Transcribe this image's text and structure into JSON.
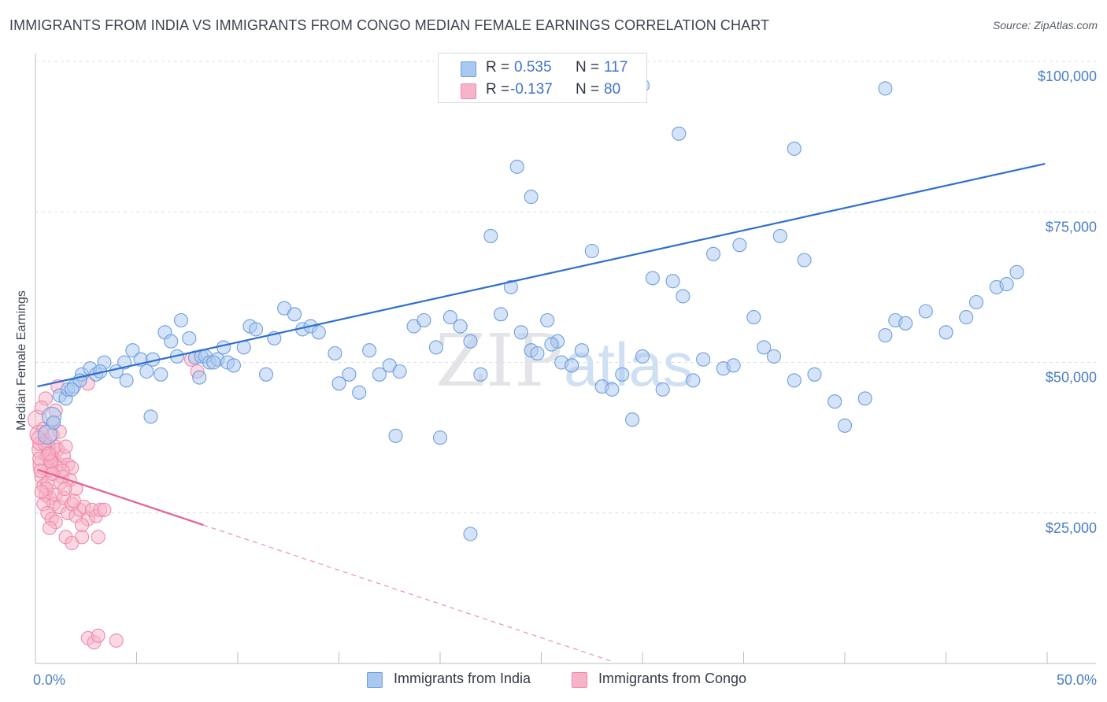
{
  "header": {
    "title": "IMMIGRANTS FROM INDIA VS IMMIGRANTS FROM CONGO MEDIAN FEMALE EARNINGS CORRELATION CHART",
    "source": "Source: ZipAtlas.com"
  },
  "watermark": {
    "zip": "ZIP",
    "atlas": "atlas"
  },
  "stats": {
    "india": {
      "r_label": "R =",
      "r_value": "0.535",
      "n_label": "N =",
      "n_value": "117"
    },
    "congo": {
      "r_label": "R =",
      "r_value": "-0.137",
      "n_label": "N =",
      "n_value": "80"
    }
  },
  "legend": {
    "india": "Immigrants from India",
    "congo": "Immigrants from Congo"
  },
  "colors": {
    "india_fill": "#a9c8f0",
    "india_stroke": "#6d9fe0",
    "india_line": "#2f6fcf",
    "congo_fill": "#f7b3c8",
    "congo_stroke": "#ee8aaa",
    "congo_line": "#e8608e",
    "grid": "#dcdfe4",
    "tick_text": "#4a7ec6"
  },
  "chart_data": {
    "type": "scatter",
    "title": "IMMIGRANTS FROM INDIA VS IMMIGRANTS FROM CONGO MEDIAN FEMALE EARNINGS CORRELATION CHART",
    "xlabel": "",
    "ylabel": "Median Female Earnings",
    "xlim": [
      0,
      50
    ],
    "ylim": [
      0,
      105000
    ],
    "x_ticks": [
      0,
      5,
      10,
      15,
      20,
      25,
      30,
      35,
      40,
      45,
      50
    ],
    "x_tick_labels": [
      {
        "value": 0,
        "label": "0.0%"
      },
      {
        "value": 50,
        "label": "50.0%"
      }
    ],
    "y_ticks": [
      {
        "value": 25000,
        "label": "$25,000"
      },
      {
        "value": 50000,
        "label": "$50,000"
      },
      {
        "value": 75000,
        "label": "$75,000"
      },
      {
        "value": 100000,
        "label": "$100,000"
      }
    ],
    "grid": true,
    "series": [
      {
        "name": "Immigrants from India",
        "key": "india",
        "R": 0.535,
        "N": 117,
        "trend": {
          "x": [
            0.1,
            49.9
          ],
          "y": [
            46000,
            83000
          ],
          "dashed_x": []
        },
        "points": [
          [
            0.8,
            41000,
            1
          ],
          [
            0.6,
            38000,
            1
          ],
          [
            0.9,
            40000,
            0
          ],
          [
            1.2,
            44500,
            0
          ],
          [
            1.5,
            44000,
            0
          ],
          [
            1.6,
            45500,
            0
          ],
          [
            1.9,
            46000,
            0
          ],
          [
            2.3,
            48000,
            0
          ],
          [
            2.7,
            49000,
            0
          ],
          [
            3.0,
            48000,
            0
          ],
          [
            3.4,
            50000,
            0
          ],
          [
            3.2,
            48500,
            0
          ],
          [
            2.2,
            47000,
            0
          ],
          [
            1.8,
            45500,
            0
          ],
          [
            4.4,
            50000,
            0
          ],
          [
            4.8,
            52000,
            0
          ],
          [
            5.2,
            50500,
            0
          ],
          [
            5.8,
            50500,
            0
          ],
          [
            6.4,
            55000,
            0
          ],
          [
            6.7,
            53500,
            0
          ],
          [
            7.0,
            51000,
            0
          ],
          [
            7.2,
            57000,
            0
          ],
          [
            7.6,
            54000,
            0
          ],
          [
            7.9,
            50800,
            0
          ],
          [
            8.2,
            51000,
            0
          ],
          [
            8.4,
            51000,
            0
          ],
          [
            8.6,
            50000,
            0
          ],
          [
            9.0,
            50500,
            0
          ],
          [
            9.3,
            52500,
            0
          ],
          [
            9.5,
            50000,
            0
          ],
          [
            9.8,
            49500,
            0
          ],
          [
            8.8,
            50000,
            0
          ],
          [
            8.1,
            47500,
            0
          ],
          [
            4.0,
            48500,
            0
          ],
          [
            4.5,
            47000,
            0
          ],
          [
            5.5,
            48500,
            0
          ],
          [
            6.2,
            48000,
            0
          ],
          [
            5.7,
            41000,
            0
          ],
          [
            10.3,
            52500,
            0
          ],
          [
            10.6,
            56000,
            0
          ],
          [
            10.9,
            55500,
            0
          ],
          [
            11.4,
            48000,
            0
          ],
          [
            11.8,
            54000,
            0
          ],
          [
            12.3,
            59000,
            0
          ],
          [
            12.8,
            58000,
            0
          ],
          [
            13.2,
            55500,
            0
          ],
          [
            13.6,
            56000,
            0
          ],
          [
            14.0,
            55000,
            0
          ],
          [
            14.8,
            51500,
            0
          ],
          [
            15.0,
            46500,
            0
          ],
          [
            15.5,
            48000,
            0
          ],
          [
            16.0,
            45000,
            0
          ],
          [
            16.5,
            52000,
            0
          ],
          [
            17.0,
            48000,
            0
          ],
          [
            17.5,
            49500,
            0
          ],
          [
            18.0,
            48500,
            0
          ],
          [
            18.7,
            56000,
            0
          ],
          [
            19.2,
            57000,
            0
          ],
          [
            19.8,
            52500,
            0
          ],
          [
            20.5,
            57500,
            0
          ],
          [
            21.0,
            56000,
            0
          ],
          [
            21.5,
            53500,
            0
          ],
          [
            22.0,
            48000,
            0
          ],
          [
            23.0,
            58000,
            0
          ],
          [
            23.5,
            62500,
            0
          ],
          [
            24.0,
            55000,
            0
          ],
          [
            24.5,
            52000,
            0
          ],
          [
            24.8,
            51500,
            0
          ],
          [
            25.3,
            57000,
            0
          ],
          [
            25.8,
            53500,
            0
          ],
          [
            26.0,
            50000,
            0
          ],
          [
            27.0,
            52000,
            0
          ],
          [
            28.0,
            46000,
            0
          ],
          [
            29.0,
            48000,
            0
          ],
          [
            30.0,
            51000,
            0
          ],
          [
            31.0,
            45500,
            0
          ],
          [
            32.5,
            47000,
            0
          ],
          [
            33.0,
            50500,
            0
          ],
          [
            34.0,
            49000,
            0
          ],
          [
            34.5,
            49500,
            0
          ],
          [
            35.5,
            57500,
            0
          ],
          [
            36.0,
            52500,
            0
          ],
          [
            36.5,
            51000,
            0
          ],
          [
            37.5,
            47000,
            0
          ],
          [
            38.5,
            48000,
            0
          ],
          [
            39.5,
            43500,
            0
          ],
          [
            41.0,
            44000,
            0
          ],
          [
            42.0,
            54500,
            0
          ],
          [
            42.5,
            57000,
            0
          ],
          [
            43.0,
            56500,
            0
          ],
          [
            44.0,
            58500,
            0
          ],
          [
            45.0,
            55000,
            0
          ],
          [
            46.0,
            57500,
            0
          ],
          [
            46.5,
            60000,
            0
          ],
          [
            47.5,
            62500,
            0
          ],
          [
            48.0,
            63000,
            0
          ],
          [
            48.5,
            65000,
            0
          ],
          [
            30.5,
            64000,
            0
          ],
          [
            31.5,
            63500,
            0
          ],
          [
            32.0,
            61000,
            0
          ],
          [
            25.5,
            53000,
            0
          ],
          [
            26.5,
            49500,
            0
          ],
          [
            28.5,
            45500,
            0
          ],
          [
            29.5,
            40500,
            0
          ],
          [
            33.5,
            68000,
            0
          ],
          [
            34.8,
            69500,
            0
          ],
          [
            36.8,
            71000,
            0
          ],
          [
            38.0,
            67000,
            0
          ],
          [
            27.5,
            68500,
            0
          ],
          [
            22.5,
            71000,
            0
          ],
          [
            23.8,
            82500,
            0
          ],
          [
            24.5,
            77500,
            0
          ],
          [
            40.0,
            39500,
            0
          ],
          [
            20.0,
            37500,
            0
          ],
          [
            17.8,
            37800,
            0
          ],
          [
            21.5,
            21500,
            0
          ],
          [
            42.0,
            95500,
            0
          ],
          [
            30.0,
            96000,
            0
          ],
          [
            31.8,
            88000,
            0
          ],
          [
            37.5,
            85500,
            0
          ]
        ]
      },
      {
        "name": "Immigrants from Congo",
        "key": "congo",
        "R": -0.137,
        "N": 80,
        "trend": {
          "x": [
            0.1,
            8.3
          ],
          "y": [
            32200,
            23000
          ],
          "dashed_x": [
            8.3,
            28.5
          ]
        },
        "points": [
          [
            0.1,
            40500,
            1
          ],
          [
            0.2,
            38000,
            1
          ],
          [
            0.3,
            35500,
            1
          ],
          [
            0.35,
            33000,
            1
          ],
          [
            0.2,
            36500,
            0
          ],
          [
            0.4,
            39000,
            0
          ],
          [
            0.5,
            37000,
            0
          ],
          [
            0.55,
            34500,
            0
          ],
          [
            0.6,
            32000,
            0
          ],
          [
            0.65,
            36000,
            0
          ],
          [
            0.7,
            35000,
            0
          ],
          [
            0.8,
            33500,
            0
          ],
          [
            0.85,
            38000,
            0
          ],
          [
            0.9,
            34000,
            0
          ],
          [
            1.0,
            36000,
            0
          ],
          [
            1.05,
            32500,
            0
          ],
          [
            1.1,
            35500,
            0
          ],
          [
            1.2,
            33000,
            0
          ],
          [
            1.3,
            31000,
            0
          ],
          [
            1.4,
            34500,
            0
          ],
          [
            1.5,
            36000,
            0
          ],
          [
            1.6,
            33000,
            0
          ],
          [
            1.7,
            30500,
            0
          ],
          [
            1.8,
            32500,
            0
          ],
          [
            0.3,
            31000,
            0
          ],
          [
            0.4,
            29500,
            0
          ],
          [
            0.5,
            28000,
            0
          ],
          [
            0.6,
            30000,
            0
          ],
          [
            0.7,
            27500,
            0
          ],
          [
            0.9,
            26500,
            0
          ],
          [
            1.0,
            28000,
            0
          ],
          [
            1.2,
            26000,
            0
          ],
          [
            1.4,
            27500,
            0
          ],
          [
            1.6,
            25000,
            0
          ],
          [
            1.8,
            26500,
            0
          ],
          [
            2.0,
            24500,
            0
          ],
          [
            2.2,
            25500,
            0
          ],
          [
            2.4,
            26000,
            0
          ],
          [
            2.6,
            24000,
            0
          ],
          [
            2.8,
            25500,
            0
          ],
          [
            3.0,
            24500,
            0
          ],
          [
            3.2,
            25500,
            0
          ],
          [
            0.4,
            26500,
            0
          ],
          [
            0.6,
            25000,
            0
          ],
          [
            0.8,
            24000,
            0
          ],
          [
            1.0,
            23500,
            0
          ],
          [
            1.5,
            21000,
            0
          ],
          [
            1.8,
            20000,
            0
          ],
          [
            2.3,
            21000,
            0
          ],
          [
            3.1,
            21000,
            0
          ],
          [
            0.5,
            44000,
            0
          ],
          [
            1.1,
            46000,
            0
          ],
          [
            2.6,
            46500,
            0
          ],
          [
            3.4,
            25500,
            0
          ],
          [
            0.3,
            42500,
            0
          ],
          [
            0.9,
            40000,
            0
          ],
          [
            0.2,
            34000,
            0
          ],
          [
            0.25,
            32000,
            0
          ],
          [
            0.45,
            36500,
            0
          ],
          [
            0.75,
            33500,
            0
          ],
          [
            1.25,
            30000,
            0
          ],
          [
            1.35,
            32000,
            0
          ],
          [
            0.15,
            37500,
            0
          ],
          [
            0.55,
            29000,
            0
          ],
          [
            2.0,
            29000,
            0
          ],
          [
            2.3,
            23000,
            0
          ],
          [
            1.9,
            27000,
            0
          ],
          [
            8.0,
            48500,
            0
          ],
          [
            7.7,
            50500,
            0
          ],
          [
            1.2,
            38500,
            0
          ],
          [
            0.65,
            34800,
            0
          ],
          [
            0.85,
            31500,
            0
          ],
          [
            1.45,
            29000,
            0
          ],
          [
            2.6,
            4200,
            0
          ],
          [
            2.9,
            3500,
            0
          ],
          [
            4.0,
            3800,
            0
          ],
          [
            3.1,
            4600,
            0
          ],
          [
            0.3,
            28500,
            0
          ],
          [
            0.7,
            22500,
            0
          ],
          [
            1.0,
            42000,
            0
          ]
        ]
      }
    ]
  }
}
